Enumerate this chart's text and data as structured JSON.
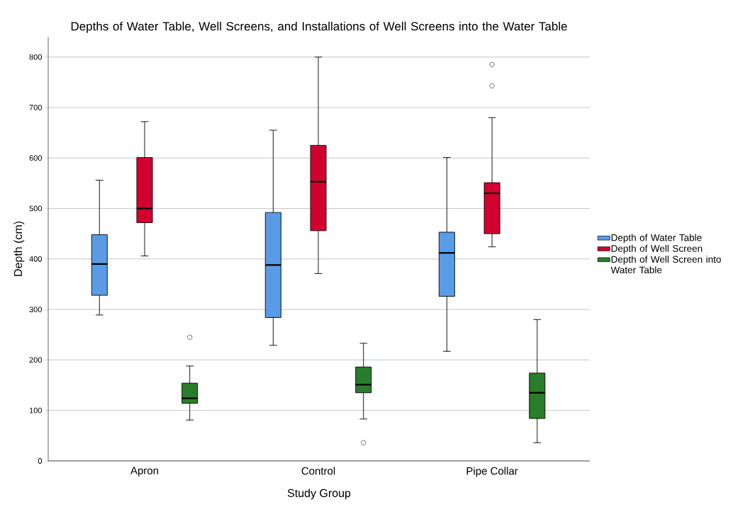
{
  "chart_data": {
    "type": "box",
    "title": "Depths of Water Table, Well Screens, and Installations of Well Screens into the Water Table",
    "xlabel": "Study Group",
    "ylabel": "Depth (cm)",
    "categories": [
      "Apron",
      "Control",
      "Pipe Collar"
    ],
    "ylim": [
      0,
      840
    ],
    "yticks": [
      0,
      100,
      200,
      300,
      400,
      500,
      600,
      700,
      800
    ],
    "grid": "y",
    "legend": "right",
    "series": [
      {
        "name": "Depth of Water Table",
        "color": "#5a9be6",
        "boxes": [
          {
            "low": 289,
            "q1": 328,
            "median": 390,
            "q3": 448,
            "high": 556
          },
          {
            "low": 229,
            "q1": 284,
            "median": 388,
            "q3": 492,
            "high": 655
          },
          {
            "low": 217,
            "q1": 326,
            "median": 412,
            "q3": 453,
            "high": 601
          }
        ]
      },
      {
        "name": "Depth of Well Screen",
        "color": "#d2002e",
        "boxes": [
          {
            "low": 406,
            "q1": 472,
            "median": 500,
            "q3": 601,
            "high": 672
          },
          {
            "low": 371,
            "q1": 456,
            "median": 553,
            "q3": 625,
            "high": 800
          },
          {
            "low": 424,
            "q1": 450,
            "median": 530,
            "q3": 551,
            "high": 680,
            "outliers": [
              743,
              785
            ]
          }
        ]
      },
      {
        "name": "Depth of Well Screen into Water Table",
        "color": "#2a7d2a",
        "boxes": [
          {
            "low": 81,
            "q1": 114,
            "median": 124,
            "q3": 154,
            "high": 188,
            "outliers": [
              245
            ]
          },
          {
            "low": 83,
            "q1": 135,
            "median": 151,
            "q3": 186,
            "high": 233,
            "outliers": [
              36
            ]
          },
          {
            "low": 36,
            "q1": 84,
            "median": 135,
            "q3": 174,
            "high": 280
          }
        ]
      }
    ]
  }
}
